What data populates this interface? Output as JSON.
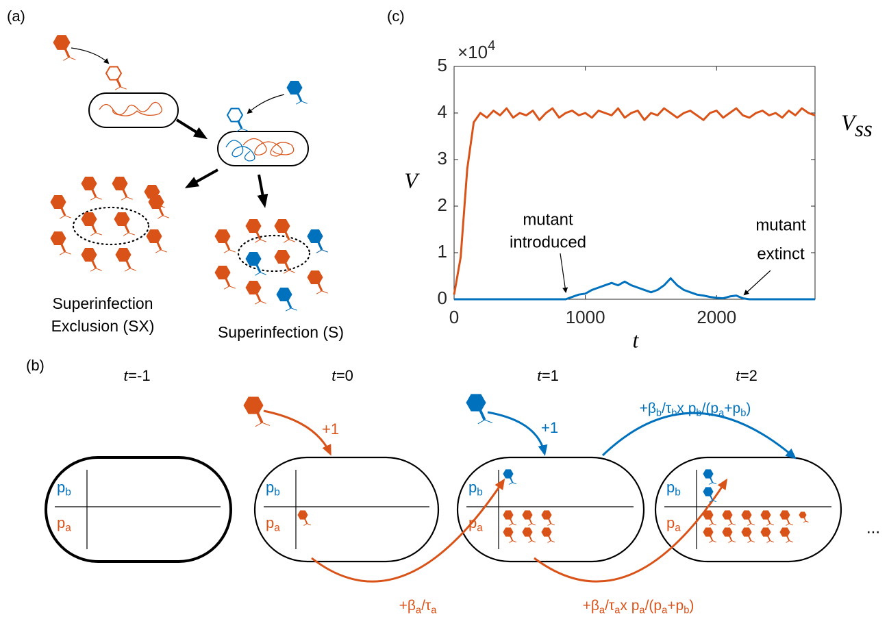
{
  "panel_a": {
    "label": "(a)",
    "sx_label": [
      "Superinfection",
      "Exclusion (SX)"
    ],
    "s_label": "Superinfection (S)"
  },
  "panel_b": {
    "label": "(b)",
    "times": [
      [
        "t",
        "=-1"
      ],
      [
        "t",
        "=0"
      ],
      [
        "t",
        "=1"
      ],
      [
        "t",
        "=2"
      ]
    ],
    "p_b": [
      "p",
      "b"
    ],
    "p_a": [
      "p",
      "a"
    ],
    "plus_one": "+1",
    "blue_rate": [
      "+β",
      "b",
      "/τ",
      "b",
      "x p",
      "b",
      "/(p",
      "a",
      "+p",
      "b",
      ")"
    ],
    "orange_rate": [
      "+β",
      "a",
      "/τ",
      "a"
    ],
    "orange_rate_split": [
      "+β",
      "a",
      "/τ",
      "a",
      "x p",
      "a",
      "/(p",
      "a",
      "+p",
      "b",
      ")"
    ],
    "ellipsis": "..."
  },
  "chart_data": {
    "type": "line",
    "label": "(c)",
    "xlabel": "t",
    "ylabel": "V",
    "y_multiplier": "×10",
    "y_exponent": "4",
    "steady_state_label": [
      "V",
      "ss"
    ],
    "annotations": [
      [
        "mutant",
        "introduced"
      ],
      [
        "mutant",
        "extinct"
      ]
    ],
    "x": [
      0,
      50,
      100,
      150,
      200,
      250,
      300,
      350,
      400,
      450,
      500,
      550,
      600,
      650,
      700,
      750,
      800,
      850,
      900,
      950,
      1000,
      1050,
      1100,
      1150,
      1200,
      1250,
      1300,
      1350,
      1400,
      1450,
      1500,
      1550,
      1600,
      1650,
      1700,
      1750,
      1800,
      1850,
      1900,
      1950,
      2000,
      2050,
      2100,
      2150,
      2200,
      2250,
      2300,
      2350,
      2400,
      2450,
      2500,
      2550,
      2600,
      2650,
      2700,
      2750
    ],
    "series": [
      {
        "color": "#d95319",
        "values": [
          0.1,
          0.9,
          2.8,
          3.8,
          4.0,
          3.9,
          4.05,
          3.95,
          4.1,
          3.9,
          4.0,
          3.95,
          4.05,
          3.85,
          4.0,
          4.1,
          3.9,
          4.0,
          4.05,
          3.95,
          4.0,
          3.9,
          4.05,
          4.0,
          3.95,
          4.1,
          3.9,
          4.0,
          4.05,
          3.85,
          4.0,
          3.95,
          4.1,
          4.0,
          3.9,
          4.0,
          4.05,
          3.95,
          3.85,
          4.0,
          4.05,
          3.9,
          4.0,
          4.1,
          3.95,
          3.9,
          4.0,
          4.05,
          3.95,
          4.0,
          3.9,
          4.05,
          3.95,
          4.1,
          4.0,
          3.95
        ]
      },
      {
        "color": "#0072bd",
        "values": [
          0,
          0,
          0,
          0,
          0,
          0,
          0,
          0,
          0,
          0,
          0,
          0,
          0,
          0,
          0,
          0,
          0,
          0,
          0.05,
          0.1,
          0.12,
          0.2,
          0.25,
          0.3,
          0.35,
          0.3,
          0.38,
          0.3,
          0.25,
          0.2,
          0.15,
          0.2,
          0.3,
          0.45,
          0.3,
          0.2,
          0.15,
          0.1,
          0.08,
          0.05,
          0.03,
          0.02,
          0.06,
          0.08,
          0.02,
          0,
          0,
          0,
          0,
          0,
          0,
          0,
          0,
          0,
          0,
          0
        ]
      }
    ],
    "xlim": [
      0,
      2750
    ],
    "ylim": [
      0,
      5
    ],
    "xticks": [
      0,
      1000,
      2000
    ],
    "yticks": [
      0,
      1,
      2,
      3,
      4,
      5
    ]
  }
}
